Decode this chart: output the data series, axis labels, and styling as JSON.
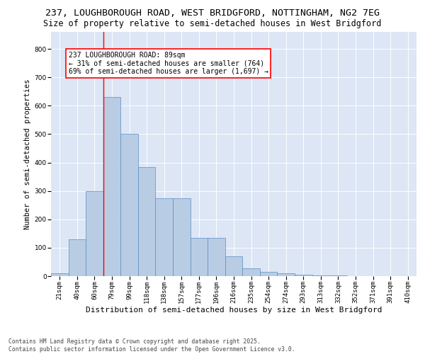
{
  "title1": "237, LOUGHBOROUGH ROAD, WEST BRIDGFORD, NOTTINGHAM, NG2 7EG",
  "title2": "Size of property relative to semi-detached houses in West Bridgford",
  "xlabel": "Distribution of semi-detached houses by size in West Bridgford",
  "ylabel": "Number of semi-detached properties",
  "categories": [
    "21sqm",
    "40sqm",
    "60sqm",
    "79sqm",
    "99sqm",
    "118sqm",
    "138sqm",
    "157sqm",
    "177sqm",
    "196sqm",
    "216sqm",
    "235sqm",
    "254sqm",
    "274sqm",
    "293sqm",
    "313sqm",
    "332sqm",
    "352sqm",
    "371sqm",
    "391sqm",
    "410sqm"
  ],
  "values": [
    10,
    130,
    300,
    630,
    500,
    383,
    275,
    275,
    135,
    135,
    70,
    28,
    15,
    10,
    5,
    3,
    2,
    1,
    0,
    0,
    0
  ],
  "bar_color": "#b8cce4",
  "bar_edge_color": "#5b8ec4",
  "vline_x_index": 3,
  "vline_color": "red",
  "annotation_title": "237 LOUGHBOROUGH ROAD: 89sqm",
  "annotation_line1": "← 31% of semi-detached houses are smaller (764)",
  "annotation_line2": "69% of semi-detached houses are larger (1,697) →",
  "ylim": [
    0,
    860
  ],
  "yticks": [
    0,
    100,
    200,
    300,
    400,
    500,
    600,
    700,
    800
  ],
  "background_color": "#dce6f5",
  "footer1": "Contains HM Land Registry data © Crown copyright and database right 2025.",
  "footer2": "Contains public sector information licensed under the Open Government Licence v3.0.",
  "title1_fontsize": 9.5,
  "title2_fontsize": 8.5,
  "xlabel_fontsize": 8,
  "ylabel_fontsize": 7.5,
  "tick_fontsize": 6.5,
  "annot_fontsize": 7,
  "footer_fontsize": 5.8
}
